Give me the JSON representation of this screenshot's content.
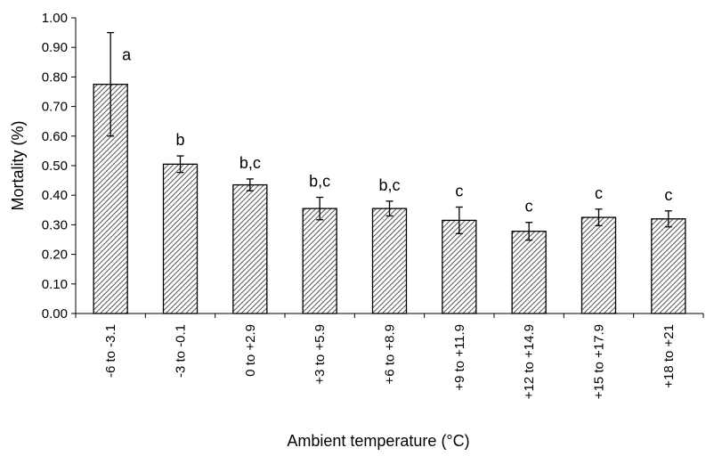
{
  "chart_data": {
    "type": "bar",
    "title": "",
    "xlabel": "Ambient temperature (°C)",
    "ylabel": "Mortality (%)",
    "ylim": [
      0,
      1.0
    ],
    "yticks": [
      "0.00",
      "0.10",
      "0.20",
      "0.30",
      "0.40",
      "0.50",
      "0.60",
      "0.70",
      "0.80",
      "0.90",
      "1.00"
    ],
    "grid": false,
    "legend": "none",
    "bar_fill": "hatched",
    "categories": [
      "-6 to -3.1",
      "-3 to -0.1",
      "0 to +2.9",
      "+3 to +5.9",
      "+6 to +8.9",
      "+9 to +11.9",
      "+12 to +14.9",
      "+15 to +17.9",
      "+18 to +21"
    ],
    "values": [
      0.775,
      0.505,
      0.435,
      0.355,
      0.355,
      0.315,
      0.278,
      0.325,
      0.32
    ],
    "error": [
      0.175,
      0.028,
      0.02,
      0.038,
      0.025,
      0.045,
      0.03,
      0.028,
      0.027
    ],
    "significance": [
      "a",
      "b",
      "b,c",
      "b,c",
      "b,c",
      "c",
      "c",
      "c",
      "c"
    ]
  }
}
